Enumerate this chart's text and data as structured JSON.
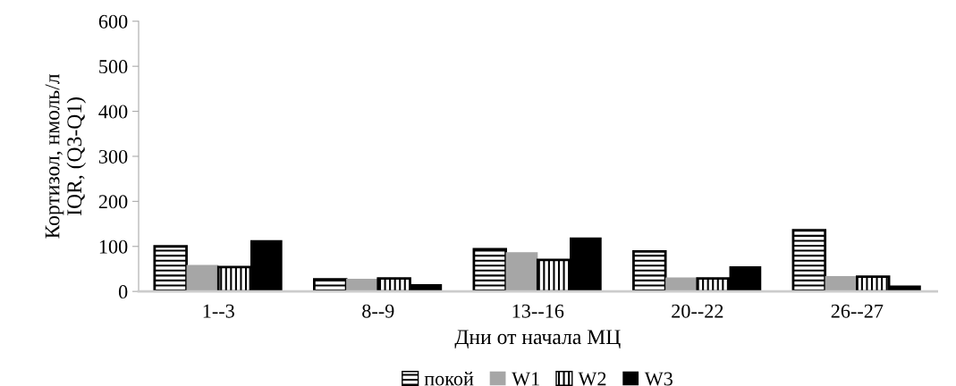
{
  "chart_data": {
    "type": "bar",
    "xlabel": "Дни от начала МЦ",
    "ylabel": "Кортизол, нмоль/л\nIQR, (Q3-Q1)",
    "categories": [
      "1--3",
      "8--9",
      "13--16",
      "20--22",
      "26--27"
    ],
    "series": [
      {
        "name": "покой",
        "color": "#000000",
        "values": [
          100,
          27,
          94,
          89,
          136
        ]
      },
      {
        "name": "W1",
        "color": "#a6a6a6",
        "values": [
          59,
          28,
          87,
          31,
          34
        ]
      },
      {
        "name": "W2",
        "color": "#000000",
        "values": [
          54,
          29,
          70,
          29,
          33
        ]
      },
      {
        "name": "W3",
        "color": "#000000",
        "values": [
          114,
          16,
          120,
          56,
          13
        ]
      }
    ],
    "ylim": [
      0,
      600
    ],
    "yticks": [
      0,
      100,
      200,
      300,
      400,
      500,
      600
    ],
    "grid": false,
    "legend": "bottom"
  }
}
